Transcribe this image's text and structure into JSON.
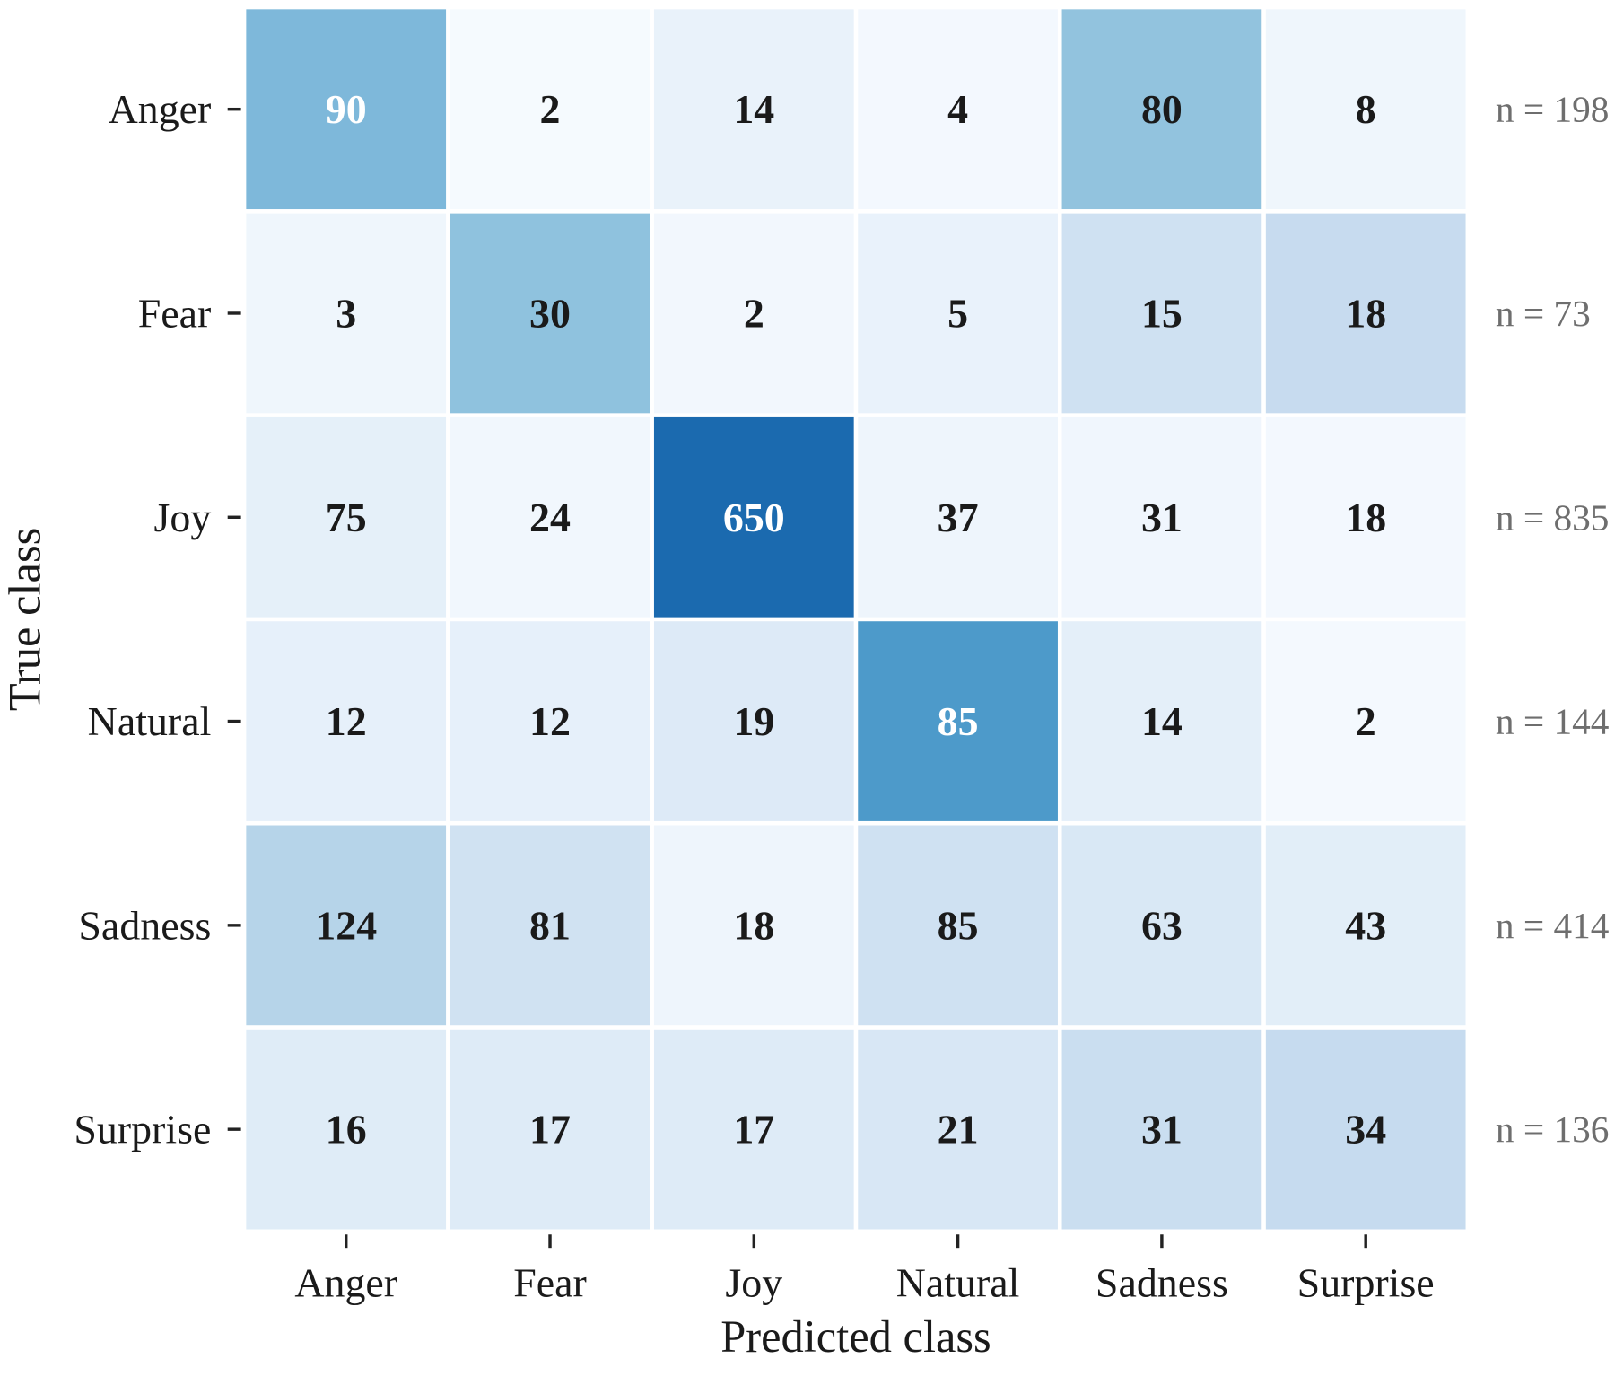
{
  "chart_data": {
    "type": "heatmap",
    "title": "",
    "xlabel": "Predicted class",
    "ylabel": "True class",
    "x_categories": [
      "Anger",
      "Fear",
      "Joy",
      "Natural",
      "Sadness",
      "Surprise"
    ],
    "y_categories": [
      "Anger",
      "Fear",
      "Joy",
      "Natural",
      "Sadness",
      "Surprise"
    ],
    "values": [
      [
        90,
        2,
        14,
        4,
        80,
        8
      ],
      [
        3,
        30,
        2,
        5,
        15,
        18
      ],
      [
        75,
        24,
        650,
        37,
        31,
        18
      ],
      [
        12,
        12,
        19,
        85,
        14,
        2
      ],
      [
        124,
        81,
        18,
        85,
        63,
        43
      ],
      [
        16,
        17,
        17,
        21,
        31,
        34
      ]
    ],
    "row_totals": [
      "n = 198",
      "n = 73",
      "n = 835",
      "n = 144",
      "n = 414",
      "n = 136"
    ],
    "colormap": "Blues (row-normalized)",
    "colors": {
      "low": "#f7fbff",
      "high": "#08306b",
      "cell_border": "#ffffff",
      "text_dark": "#1a1a1a",
      "text_light": "#ffffff",
      "row_total_text": "#6e6e6e",
      "tick": "#222222"
    },
    "grid": false,
    "legend": "none"
  }
}
